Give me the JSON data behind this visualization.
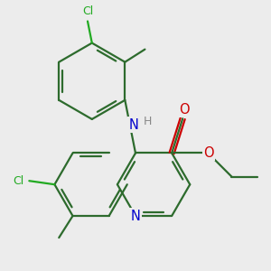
{
  "bg_color": "#ececec",
  "bond_color": "#2d6b2d",
  "bond_width": 1.6,
  "atom_colors": {
    "N": "#0000cc",
    "O": "#cc0000",
    "Cl": "#22aa22",
    "H": "#888888"
  },
  "font_size": 9.0,
  "fig_size": [
    3.0,
    3.0
  ],
  "dpi": 100
}
